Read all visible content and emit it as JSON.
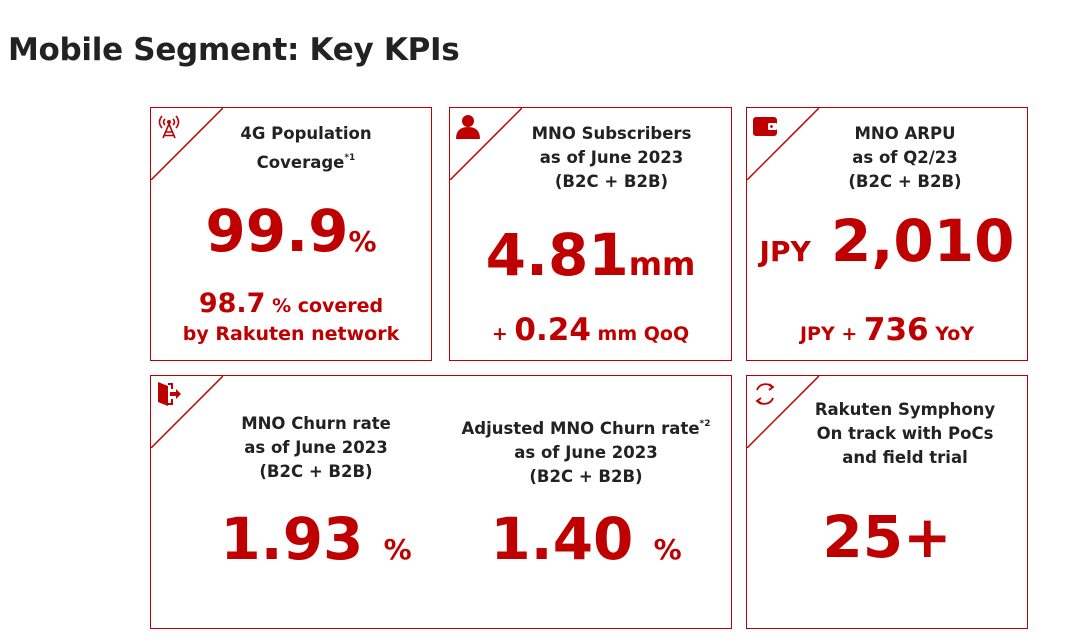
{
  "page": {
    "title": "Mobile Segment: Key KPIs"
  },
  "colors": {
    "accent": "#bf0000",
    "text": "#222222"
  },
  "coverage": {
    "icon": "cell-tower-icon",
    "label_line1": "4G Population",
    "label_line2": "Coverage",
    "footnote": "*1",
    "value": "99.9",
    "unit": "%",
    "sub_value": "98.7",
    "sub_text1": "% covered",
    "sub_text2": "by Rakuten network"
  },
  "subscribers": {
    "icon": "person-icon",
    "label_line1": "MNO Subscribers",
    "label_line2": "as of June 2023",
    "label_line3": "(B2C + B2B)",
    "value": "4.81",
    "unit": "mm",
    "sub_prefix": "+",
    "sub_value": "0.24",
    "sub_suffix": "mm QoQ"
  },
  "arpu": {
    "icon": "wallet-icon",
    "label_line1": "MNO ARPU",
    "label_line2": "as of Q2/23",
    "label_line3": "(B2C + B2B)",
    "currency": "JPY",
    "value": "2,010",
    "sub_prefix": "JPY +",
    "sub_value": "736",
    "sub_suffix": "YoY"
  },
  "churn": {
    "icon": "exit-icon",
    "col1": {
      "label_line1": "MNO Churn rate",
      "label_line2": "as of June 2023",
      "label_line3": "(B2C + B2B)",
      "value": "1.93",
      "unit": "%"
    },
    "col2": {
      "label_line1": "Adjusted MNO Churn rate",
      "footnote": "*2",
      "label_line2": "as of June 2023",
      "label_line3": "(B2C + B2B)",
      "value": "1.40",
      "unit": "%"
    }
  },
  "symphony": {
    "icon": "refresh-cycle-icon",
    "label_line1": "Rakuten Symphony",
    "label_line2": "On track with PoCs",
    "label_line3": "and field trial",
    "value": "25+"
  }
}
